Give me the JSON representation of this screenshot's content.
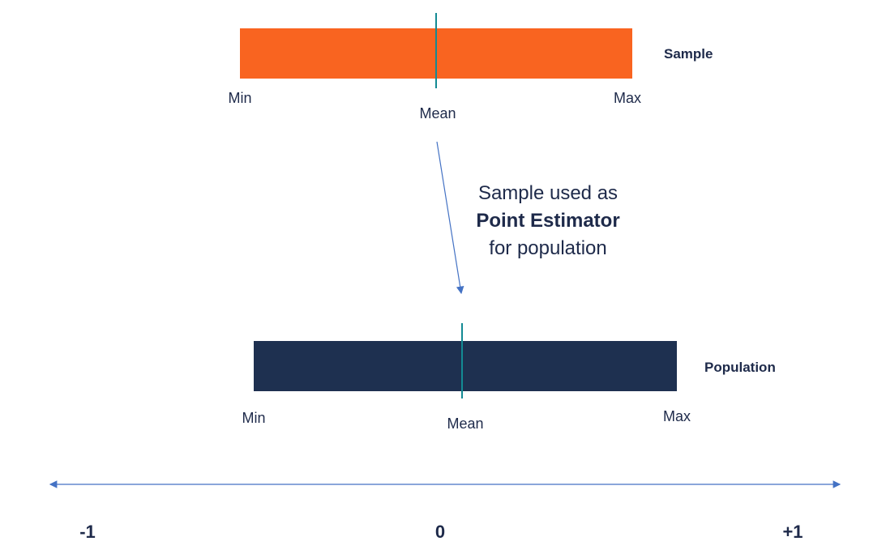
{
  "sample": {
    "title": "Sample",
    "min_label": "Min",
    "mean_label": "Mean",
    "max_label": "Max",
    "color": "#f96420"
  },
  "population": {
    "title": "Population",
    "min_label": "Min",
    "mean_label": "Mean",
    "max_label": "Max",
    "color": "#1e3050"
  },
  "callout": {
    "line1": "Sample used as",
    "line2": "Point Estimator",
    "line3": "for population"
  },
  "axis": {
    "left_label": "-1",
    "center_label": "0",
    "right_label": "+1",
    "color": "#4472c4"
  },
  "mean_line_color": "#138a94"
}
